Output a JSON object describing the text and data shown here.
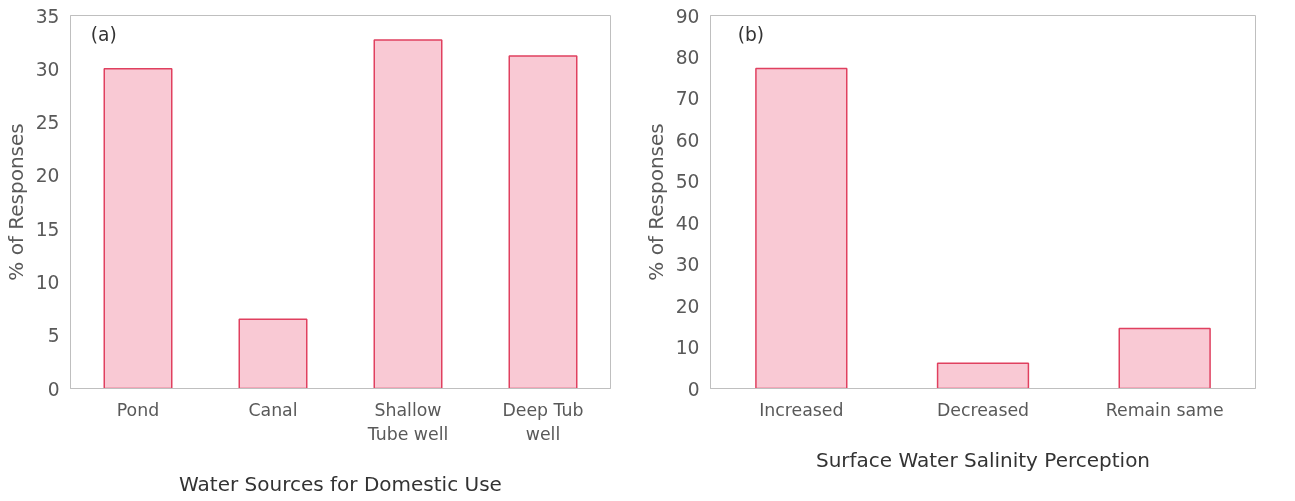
{
  "chart_data": [
    {
      "type": "bar",
      "categories": [
        "Pond",
        "Canal",
        "Shallow Tube well",
        "Deep Tub well"
      ],
      "values": [
        30.0,
        6.5,
        32.7,
        31.2
      ],
      "color": "#f9c9d4",
      "ylabel": "% of Responses",
      "xlabel": "Water Sources for Domestic Use",
      "ylim": [
        0,
        35
      ],
      "yticks": [
        0,
        5,
        10,
        15,
        20,
        25,
        30,
        35
      ],
      "annotations": [
        "(a)"
      ],
      "grid": false
    },
    {
      "type": "bar",
      "categories": [
        "Increased",
        "Decreased",
        "Remain same"
      ],
      "values": [
        77.2,
        6.1,
        14.5
      ],
      "color": "#f9c9d4",
      "ylabel": "% of Responses",
      "xlabel": "Surface Water Salinity Perception",
      "ylim": [
        0,
        90
      ],
      "yticks": [
        0,
        10,
        20,
        30,
        40,
        50,
        60,
        70,
        80,
        90
      ],
      "annotations": [
        "(b)"
      ],
      "grid": false
    }
  ]
}
